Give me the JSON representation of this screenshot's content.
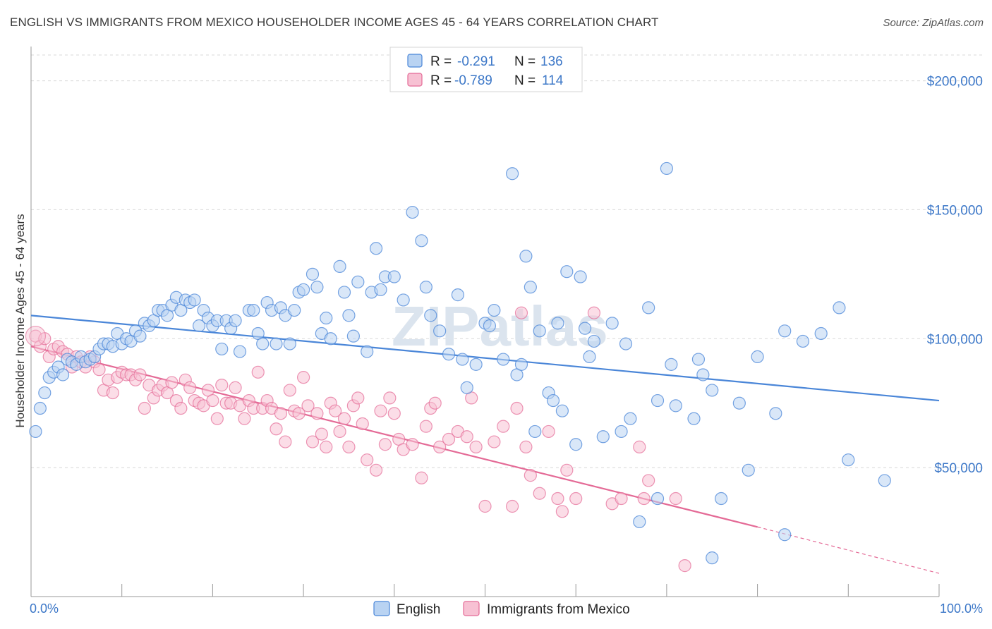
{
  "title": "ENGLISH VS IMMIGRANTS FROM MEXICO HOUSEHOLDER INCOME AGES 45 - 64 YEARS CORRELATION CHART",
  "source": "Source: ZipAtlas.com",
  "watermark": "ZIPatlas",
  "colors": {
    "english": "#4a86d8",
    "english_fill": "#b9d3f2",
    "mexico": "#e46a96",
    "mexico_fill": "#f7c1d3",
    "grid": "#d8d8d8",
    "axis_text": "#3d78c8"
  },
  "stats": [
    {
      "r_label": "R =",
      "r": "-0.291",
      "n_label": "N =",
      "n": "136"
    },
    {
      "r_label": "R =",
      "r": "-0.789",
      "n_label": "N =",
      "n": "114"
    }
  ],
  "legend": [
    "English",
    "Immigrants from Mexico"
  ],
  "chart_data": {
    "type": "scatter",
    "ylabel": "Householder Income Ages 45 - 64 years",
    "xlim": [
      0,
      100
    ],
    "ylim": [
      0,
      210000
    ],
    "x_tick_labels": [
      "0.0%",
      "100.0%"
    ],
    "y_ticks": [
      50000,
      100000,
      150000,
      200000
    ],
    "y_tick_labels": [
      "$50,000",
      "$100,000",
      "$150,000",
      "$200,000"
    ],
    "grid": true,
    "legend_position": "bottom-center",
    "series": [
      {
        "name": "English",
        "trend": {
          "x": [
            0,
            100
          ],
          "y": [
            109000,
            76000
          ]
        },
        "points": [
          [
            0.5,
            64000
          ],
          [
            1,
            73000
          ],
          [
            1.5,
            79000
          ],
          [
            2,
            85000
          ],
          [
            2.5,
            87000
          ],
          [
            3,
            89000
          ],
          [
            3.5,
            86000
          ],
          [
            4,
            92000
          ],
          [
            4.5,
            91000
          ],
          [
            5,
            90000
          ],
          [
            5.5,
            93000
          ],
          [
            6,
            91000
          ],
          [
            6.5,
            92000
          ],
          [
            7,
            93000
          ],
          [
            7.5,
            96000
          ],
          [
            8,
            98000
          ],
          [
            8.5,
            98000
          ],
          [
            9,
            97000
          ],
          [
            9.5,
            102000
          ],
          [
            10,
            98000
          ],
          [
            10.5,
            100000
          ],
          [
            11,
            99000
          ],
          [
            11.5,
            103000
          ],
          [
            12,
            101000
          ],
          [
            12.5,
            106000
          ],
          [
            13,
            105000
          ],
          [
            13.5,
            107000
          ],
          [
            14,
            111000
          ],
          [
            14.5,
            111000
          ],
          [
            15,
            109000
          ],
          [
            15.5,
            113000
          ],
          [
            16,
            116000
          ],
          [
            16.5,
            111000
          ],
          [
            17,
            115000
          ],
          [
            17.5,
            114000
          ],
          [
            18,
            115000
          ],
          [
            18.5,
            105000
          ],
          [
            19,
            111000
          ],
          [
            19.5,
            108000
          ],
          [
            20,
            105000
          ],
          [
            20.5,
            107000
          ],
          [
            21,
            96000
          ],
          [
            21.5,
            107000
          ],
          [
            22,
            104000
          ],
          [
            22.5,
            107000
          ],
          [
            23,
            95000
          ],
          [
            24,
            111000
          ],
          [
            24.5,
            111000
          ],
          [
            25,
            102000
          ],
          [
            25.5,
            98000
          ],
          [
            26,
            114000
          ],
          [
            26.5,
            111000
          ],
          [
            27,
            98000
          ],
          [
            27.5,
            112000
          ],
          [
            28,
            109000
          ],
          [
            28.5,
            98000
          ],
          [
            29,
            111000
          ],
          [
            29.5,
            118000
          ],
          [
            30,
            119000
          ],
          [
            31,
            125000
          ],
          [
            31.5,
            120000
          ],
          [
            32,
            102000
          ],
          [
            32.5,
            108000
          ],
          [
            33,
            100000
          ],
          [
            34,
            128000
          ],
          [
            34.5,
            118000
          ],
          [
            35,
            109000
          ],
          [
            35.5,
            101000
          ],
          [
            36,
            122000
          ],
          [
            37,
            95000
          ],
          [
            37.5,
            118000
          ],
          [
            38,
            135000
          ],
          [
            38.5,
            119000
          ],
          [
            39,
            124000
          ],
          [
            40,
            124000
          ],
          [
            41,
            115000
          ],
          [
            42,
            149000
          ],
          [
            43,
            138000
          ],
          [
            43.5,
            120000
          ],
          [
            44,
            109000
          ],
          [
            45,
            103000
          ],
          [
            46,
            94000
          ],
          [
            47,
            117000
          ],
          [
            47.5,
            92000
          ],
          [
            48,
            81000
          ],
          [
            49,
            90000
          ],
          [
            50,
            106000
          ],
          [
            50.5,
            105000
          ],
          [
            51,
            111000
          ],
          [
            52,
            92000
          ],
          [
            53,
            164000
          ],
          [
            53.5,
            86000
          ],
          [
            54,
            90000
          ],
          [
            54.5,
            132000
          ],
          [
            55,
            120000
          ],
          [
            55.5,
            64000
          ],
          [
            56,
            103000
          ],
          [
            57,
            79000
          ],
          [
            57.5,
            76000
          ],
          [
            58,
            106000
          ],
          [
            58.5,
            72000
          ],
          [
            59,
            126000
          ],
          [
            60,
            59000
          ],
          [
            60.5,
            124000
          ],
          [
            61,
            104000
          ],
          [
            61.5,
            93000
          ],
          [
            62,
            99000
          ],
          [
            63,
            62000
          ],
          [
            64,
            106000
          ],
          [
            65,
            64000
          ],
          [
            65.5,
            98000
          ],
          [
            66,
            69000
          ],
          [
            67,
            29000
          ],
          [
            68,
            112000
          ],
          [
            69,
            76000
          ],
          [
            70,
            166000
          ],
          [
            70.5,
            90000
          ],
          [
            71,
            74000
          ],
          [
            73,
            69000
          ],
          [
            73.5,
            92000
          ],
          [
            74,
            86000
          ],
          [
            75,
            80000
          ],
          [
            76,
            38000
          ],
          [
            78,
            75000
          ],
          [
            79,
            49000
          ],
          [
            80,
            93000
          ],
          [
            82,
            71000
          ],
          [
            83,
            103000
          ],
          [
            85,
            99000
          ],
          [
            87,
            102000
          ],
          [
            89,
            112000
          ],
          [
            90,
            53000
          ],
          [
            94,
            45000
          ],
          [
            75,
            15000
          ],
          [
            69,
            38000
          ],
          [
            83,
            24000
          ]
        ]
      },
      {
        "name": "Immigrants from Mexico",
        "trend": {
          "x": [
            0,
            80
          ],
          "y": [
            97000,
            27000
          ]
        },
        "trend_dashed": {
          "x": [
            80,
            100
          ],
          "y": [
            27000,
            9000
          ]
        },
        "points": [
          [
            0.5,
            101000
          ],
          [
            1,
            97000
          ],
          [
            1.5,
            100000
          ],
          [
            2,
            93000
          ],
          [
            2.5,
            96000
          ],
          [
            3,
            97000
          ],
          [
            3.5,
            95000
          ],
          [
            4,
            94000
          ],
          [
            4.5,
            89000
          ],
          [
            5,
            93000
          ],
          [
            5.5,
            91000
          ],
          [
            6,
            89000
          ],
          [
            6.5,
            93000
          ],
          [
            7,
            91000
          ],
          [
            7.5,
            88000
          ],
          [
            8,
            80000
          ],
          [
            8.5,
            84000
          ],
          [
            9,
            79000
          ],
          [
            9.5,
            85000
          ],
          [
            10,
            87000
          ],
          [
            10.5,
            86000
          ],
          [
            11,
            86000
          ],
          [
            11.5,
            84000
          ],
          [
            12,
            86000
          ],
          [
            12.5,
            73000
          ],
          [
            13,
            82000
          ],
          [
            13.5,
            77000
          ],
          [
            14,
            80000
          ],
          [
            14.5,
            82000
          ],
          [
            15,
            79000
          ],
          [
            15.5,
            83000
          ],
          [
            16,
            76000
          ],
          [
            16.5,
            73000
          ],
          [
            17,
            84000
          ],
          [
            17.5,
            81000
          ],
          [
            18,
            76000
          ],
          [
            18.5,
            75000
          ],
          [
            19,
            74000
          ],
          [
            19.5,
            80000
          ],
          [
            20,
            76000
          ],
          [
            20.5,
            69000
          ],
          [
            21,
            82000
          ],
          [
            21.5,
            75000
          ],
          [
            22,
            75000
          ],
          [
            22.5,
            81000
          ],
          [
            23,
            74000
          ],
          [
            23.5,
            69000
          ],
          [
            24,
            76000
          ],
          [
            24.5,
            73000
          ],
          [
            25,
            87000
          ],
          [
            25.5,
            73000
          ],
          [
            26,
            76000
          ],
          [
            26.5,
            73000
          ],
          [
            27,
            65000
          ],
          [
            27.5,
            71000
          ],
          [
            28,
            60000
          ],
          [
            28.5,
            80000
          ],
          [
            29,
            72000
          ],
          [
            29.5,
            71000
          ],
          [
            30,
            85000
          ],
          [
            30.5,
            74000
          ],
          [
            31,
            60000
          ],
          [
            31.5,
            71000
          ],
          [
            32,
            63000
          ],
          [
            32.5,
            58000
          ],
          [
            33,
            75000
          ],
          [
            33.5,
            72000
          ],
          [
            34,
            64000
          ],
          [
            34.5,
            69000
          ],
          [
            35,
            58000
          ],
          [
            35.5,
            74000
          ],
          [
            36,
            77000
          ],
          [
            36.5,
            67000
          ],
          [
            37,
            53000
          ],
          [
            38,
            49000
          ],
          [
            38.5,
            72000
          ],
          [
            39,
            59000
          ],
          [
            39.5,
            77000
          ],
          [
            40,
            71000
          ],
          [
            40.5,
            61000
          ],
          [
            41,
            57000
          ],
          [
            42,
            59000
          ],
          [
            43,
            46000
          ],
          [
            43.5,
            66000
          ],
          [
            44,
            73000
          ],
          [
            44.5,
            75000
          ],
          [
            45,
            58000
          ],
          [
            46,
            61000
          ],
          [
            47,
            64000
          ],
          [
            48,
            62000
          ],
          [
            48.5,
            77000
          ],
          [
            49,
            58000
          ],
          [
            50,
            35000
          ],
          [
            51,
            60000
          ],
          [
            52,
            66000
          ],
          [
            53,
            35000
          ],
          [
            53.5,
            73000
          ],
          [
            54,
            110000
          ],
          [
            54.5,
            58000
          ],
          [
            55,
            47000
          ],
          [
            56,
            40000
          ],
          [
            57,
            64000
          ],
          [
            58,
            38000
          ],
          [
            58.5,
            33000
          ],
          [
            59,
            49000
          ],
          [
            60,
            38000
          ],
          [
            62,
            110000
          ],
          [
            64,
            36000
          ],
          [
            65,
            38000
          ],
          [
            67,
            58000
          ],
          [
            67.5,
            38000
          ],
          [
            68,
            45000
          ],
          [
            71,
            38000
          ],
          [
            72,
            12000
          ]
        ]
      }
    ]
  }
}
